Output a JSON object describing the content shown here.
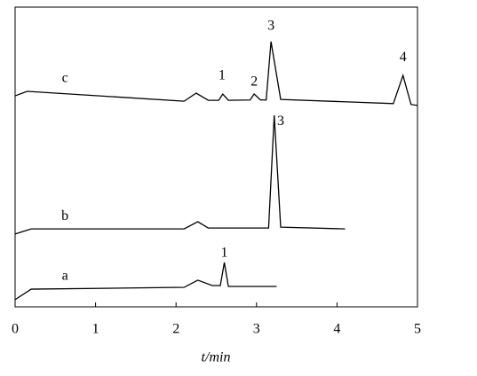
{
  "chart_data": {
    "type": "line",
    "xlabel": "t/min",
    "xlim": [
      0,
      5
    ],
    "xticks": [
      0,
      1,
      2,
      3,
      4,
      5
    ],
    "ylim": [
      0,
      100
    ],
    "series": [
      {
        "name": "a",
        "color": "#000000",
        "x": [
          0,
          0.2,
          2.1,
          2.27,
          2.45,
          2.55,
          2.6,
          2.65,
          3.25
        ],
        "values": [
          2.4,
          5.9,
          6.5,
          8.9,
          7.1,
          7.1,
          14.8,
          6.8,
          6.8
        ]
      },
      {
        "name": "b",
        "color": "#000000",
        "x": [
          0,
          0.2,
          2.1,
          2.27,
          2.4,
          3.15,
          3.22,
          3.3,
          4.1
        ],
        "values": [
          24.3,
          26.0,
          26.0,
          28.4,
          26.3,
          26.3,
          63.9,
          26.6,
          26.0
        ]
      },
      {
        "name": "c",
        "color": "#000000",
        "x": [
          0,
          0.15,
          2.1,
          2.25,
          2.4,
          2.53,
          2.58,
          2.65,
          2.92,
          2.97,
          3.05,
          3.12,
          3.18,
          3.3,
          4.7,
          4.82,
          4.92,
          5.0
        ],
        "values": [
          70.4,
          71.9,
          68.6,
          71.3,
          68.9,
          68.9,
          71.0,
          68.9,
          69.0,
          71.0,
          69.0,
          69.0,
          88.5,
          69.2,
          67.8,
          77.2,
          67.5,
          67.2
        ]
      }
    ],
    "annotations": [
      {
        "text": "1",
        "x": 2.6,
        "y": 17.8
      },
      {
        "text": "3",
        "x": 3.3,
        "y": 61.8
      },
      {
        "text": "1",
        "x": 2.57,
        "y": 76.9
      },
      {
        "text": "2",
        "x": 2.97,
        "y": 74.9
      },
      {
        "text": "3",
        "x": 3.18,
        "y": 93.5
      },
      {
        "text": "4",
        "x": 4.82,
        "y": 83.1
      }
    ]
  }
}
